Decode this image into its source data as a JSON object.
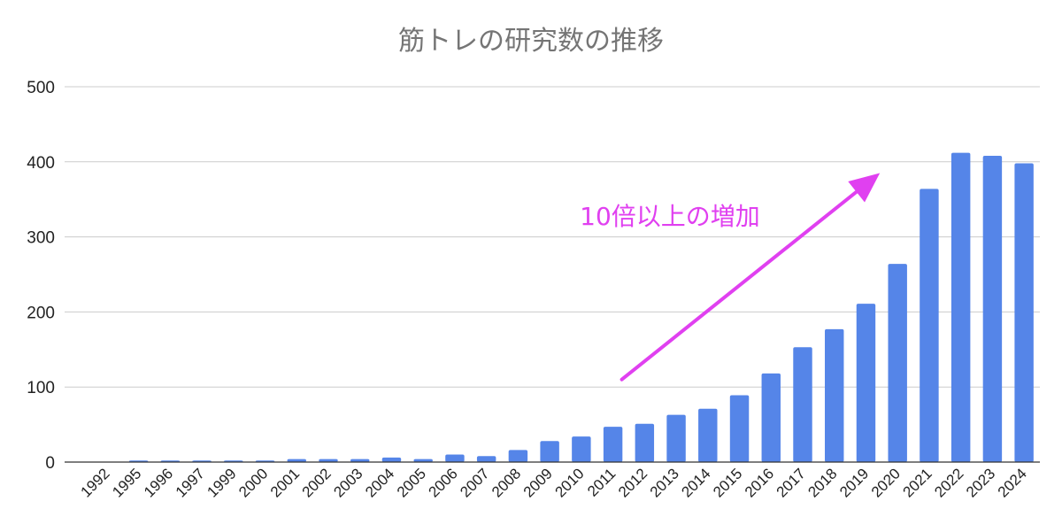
{
  "chart_data": {
    "type": "bar",
    "title": "筋トレの研究数の推移",
    "xlabel": "",
    "ylabel": "",
    "ylim": [
      0,
      500
    ],
    "yticks": [
      "0",
      "100",
      "200",
      "300",
      "400",
      "500"
    ],
    "grid": true,
    "legend": "none",
    "bar_color": "#5585e8",
    "categories": [
      "1992",
      "1995",
      "1996",
      "1997",
      "1999",
      "2000",
      "2001",
      "2002",
      "2003",
      "2004",
      "2005",
      "2006",
      "2007",
      "2008",
      "2009",
      "2010",
      "2011",
      "2012",
      "2013",
      "2014",
      "2015",
      "2016",
      "2017",
      "2018",
      "2019",
      "2020",
      "2021",
      "2022",
      "2023",
      "2024"
    ],
    "values": [
      0,
      2,
      2,
      2,
      2,
      2,
      4,
      4,
      4,
      6,
      4,
      10,
      8,
      16,
      28,
      34,
      47,
      51,
      63,
      71,
      89,
      118,
      153,
      177,
      211,
      264,
      364,
      412,
      408,
      398
    ],
    "annotation": {
      "text": "10倍以上の増加",
      "color": "#e040f0",
      "arrow_from": [
        "2011",
        110
      ],
      "arrow_to": [
        "2020",
        385
      ]
    }
  }
}
